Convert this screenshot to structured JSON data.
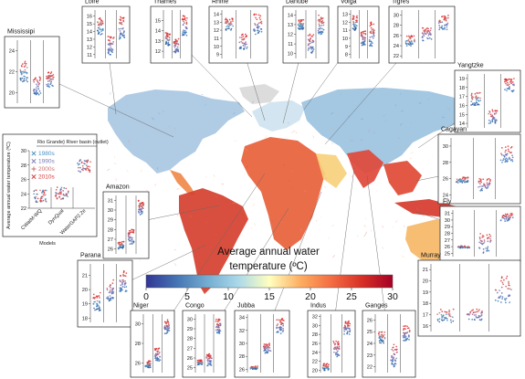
{
  "colorbar": {
    "title_line1": "Average annual water",
    "title_line2": "temperature (ºC)",
    "ticks": [
      "0",
      "5",
      "10",
      "15",
      "20",
      "25",
      "30"
    ],
    "colors": [
      "#313695",
      "#4575b4",
      "#74add1",
      "#abd9e9",
      "#ffffbf",
      "#fdae61",
      "#f46d43",
      "#d73027",
      "#a50026"
    ]
  },
  "legend": {
    "header": "Rio Grande} River basin (outlet)",
    "ylabel": "Average annual water temperature (ºC)",
    "yticks": [
      "30",
      "28",
      "26",
      "24",
      "22"
    ],
    "series": [
      {
        "name": "1980s",
        "color": "#4a90c2",
        "symbol": "cross"
      },
      {
        "name": "1990s",
        "color": "#7a7ab8",
        "symbol": "cross"
      },
      {
        "name": "2000s",
        "color": "#c97070",
        "symbol": "plus"
      },
      {
        "name": "2010s",
        "color": "#d9383a",
        "symbol": "cross"
      }
    ],
    "model_names": [
      "CWatM-WQ",
      "DynQual",
      "WaterGAP2.2e"
    ],
    "xlabel": "Models"
  },
  "chart_data": {
    "type": "scatter",
    "description_series": [
      "1980s",
      "1990s",
      "2000s",
      "2010s"
    ],
    "models": [
      "CWatM-WQ",
      "DynQual",
      "WaterGAP2.2e"
    ],
    "panels": [
      {
        "name": "Loire",
        "yticks": [
          11,
          12,
          13,
          14,
          15,
          16
        ],
        "ylim": [
          10.5,
          16.8
        ],
        "model_ranges": [
          [
            13.5,
            15.8
          ],
          [
            11,
            13.5
          ],
          [
            13,
            16.2
          ]
        ]
      },
      {
        "name": "Thames",
        "yticks": [
          12,
          13,
          14,
          15
        ],
        "ylim": [
          11.3,
          16.0
        ],
        "model_ranges": [
          [
            12.5,
            13.8
          ],
          [
            11.8,
            13.2
          ],
          [
            13.5,
            15.5
          ]
        ]
      },
      {
        "name": "Rhine",
        "yticks": [
          9,
          10,
          11,
          12,
          13,
          14
        ],
        "ylim": [
          8.5,
          14.5
        ],
        "model_ranges": [
          [
            12,
            13.5
          ],
          [
            9.5,
            11.5
          ],
          [
            11.5,
            14
          ]
        ]
      },
      {
        "name": "Danube",
        "yticks": [
          10,
          11,
          12,
          13,
          14
        ],
        "ylim": [
          9.5,
          14.5
        ],
        "model_ranges": [
          [
            12.5,
            13.5
          ],
          [
            10,
            12
          ],
          [
            12,
            14
          ]
        ]
      },
      {
        "name": "Volga",
        "yticks": [
          8,
          9,
          10,
          11,
          12,
          13
        ],
        "ylim": [
          7.5,
          13.5
        ],
        "model_ranges": [
          [
            11,
            12.8
          ],
          [
            9,
            11
          ],
          [
            9,
            12
          ]
        ]
      },
      {
        "name": "Tigres",
        "yticks": [
          22,
          24,
          26,
          28,
          30
        ],
        "ylim": [
          21.5,
          31
        ],
        "model_ranges": [
          [
            24,
            26
          ],
          [
            25,
            27.5
          ],
          [
            27,
            30
          ]
        ]
      },
      {
        "name": "Mississipi",
        "yticks": [
          20,
          22,
          24
        ],
        "ylim": [
          19,
          25
        ],
        "model_ranges": [
          [
            21,
            23
          ],
          [
            19.8,
            21.5
          ],
          [
            20.5,
            22
          ]
        ]
      },
      {
        "name": "Yangtzke",
        "yticks": [
          14,
          15,
          16,
          17,
          18,
          19
        ],
        "ylim": [
          13.5,
          19.5
        ],
        "model_ranges": [
          [
            16,
            17.5
          ],
          [
            14,
            15.5
          ],
          [
            17.5,
            19
          ]
        ]
      },
      {
        "name": "Cagayan",
        "yticks": [
          24,
          26,
          28,
          30
        ],
        "ylim": [
          23.5,
          31
        ],
        "model_ranges": [
          [
            25.5,
            26.2
          ],
          [
            24.5,
            26
          ],
          [
            28,
            30
          ]
        ]
      },
      {
        "name": "Amazon",
        "yticks": [
          26,
          27,
          28,
          29,
          30,
          31
        ],
        "ylim": [
          25.5,
          31.5
        ],
        "model_ranges": [
          [
            26,
            26.8
          ],
          [
            26.5,
            28
          ],
          [
            29.5,
            31
          ]
        ]
      },
      {
        "name": "Fly",
        "yticks": [
          25,
          26,
          27,
          28,
          29,
          30,
          31
        ],
        "ylim": [
          24.5,
          31.5
        ],
        "model_ranges": [
          [
            25.8,
            26.1
          ],
          [
            25,
            28
          ],
          [
            29.8,
            31
          ]
        ]
      },
      {
        "name": "Parana",
        "yticks": [
          18,
          19,
          20,
          21
        ],
        "ylim": [
          17.7,
          21.8
        ],
        "model_ranges": [
          [
            18.5,
            19.8
          ],
          [
            19.2,
            20.8
          ],
          [
            19.8,
            21.3
          ]
        ]
      },
      {
        "name": "Murray",
        "yticks": [
          16,
          17,
          18,
          19,
          20,
          21
        ],
        "ylim": [
          15.5,
          21.5
        ],
        "model_ranges": [
          [
            16.3,
            17.5
          ],
          [
            16.5,
            17.5
          ],
          [
            18,
            20.5
          ]
        ]
      },
      {
        "name": "Niger",
        "yticks": [
          26,
          28,
          30
        ],
        "ylim": [
          25,
          31
        ],
        "model_ranges": [
          [
            25.5,
            26.2
          ],
          [
            26.2,
            27.5
          ],
          [
            29,
            30.5
          ]
        ]
      },
      {
        "name": "Congo",
        "yticks": [
          25,
          26,
          27,
          28,
          29,
          30
        ],
        "ylim": [
          24.5,
          30.5
        ],
        "model_ranges": [
          [
            25.3,
            25.8
          ],
          [
            25.2,
            26.5
          ],
          [
            28.5,
            30
          ]
        ]
      },
      {
        "name": "Jubba",
        "yticks": [
          26,
          28,
          30,
          32,
          34
        ],
        "ylim": [
          25.5,
          34.5
        ],
        "model_ranges": [
          [
            26,
            26.5
          ],
          [
            28.5,
            30
          ],
          [
            31.5,
            34
          ]
        ]
      },
      {
        "name": "Indus",
        "yticks": [
          20,
          22,
          24,
          26,
          28,
          30,
          32
        ],
        "ylim": [
          19.5,
          32.5
        ],
        "model_ranges": [
          [
            20,
            21.5
          ],
          [
            23,
            26.5
          ],
          [
            28,
            31
          ]
        ]
      },
      {
        "name": "Ganges",
        "yticks": [
          22,
          23,
          24,
          25,
          26
        ],
        "ylim": [
          21.5,
          26.5
        ],
        "model_ranges": [
          [
            24,
            25
          ],
          [
            22,
            24
          ],
          [
            24.2,
            25.5
          ]
        ]
      }
    ]
  }
}
